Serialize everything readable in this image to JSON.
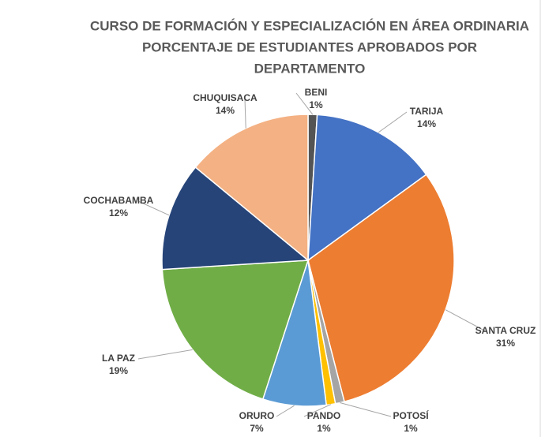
{
  "chart_data": {
    "type": "pie",
    "title": [
      "CURSO DE FORMACIÓN Y ESPECIALIZACIÓN EN ÁREA ORDINARIA",
      "PORCENTAJE DE ESTUDIANTES APROBADOS POR",
      "DEPARTAMENTO"
    ],
    "categories": [
      "BENI",
      "TARIJA",
      "SANTA CRUZ",
      "POTOSÍ",
      "PANDO",
      "ORURO",
      "LA PAZ",
      "COCHABAMBA",
      "CHUQUISACA"
    ],
    "values": [
      1,
      14,
      31,
      1,
      1,
      7,
      19,
      12,
      14
    ],
    "value_labels": [
      "1%",
      "14%",
      "31%",
      "1%",
      "1%",
      "7%",
      "19%",
      "12%",
      "14%"
    ],
    "colors": [
      "#545454",
      "#4472c4",
      "#ed7d31",
      "#a5a5a5",
      "#ffc000",
      "#5b9bd5",
      "#70ad47",
      "#264478",
      "#f4b183"
    ]
  }
}
